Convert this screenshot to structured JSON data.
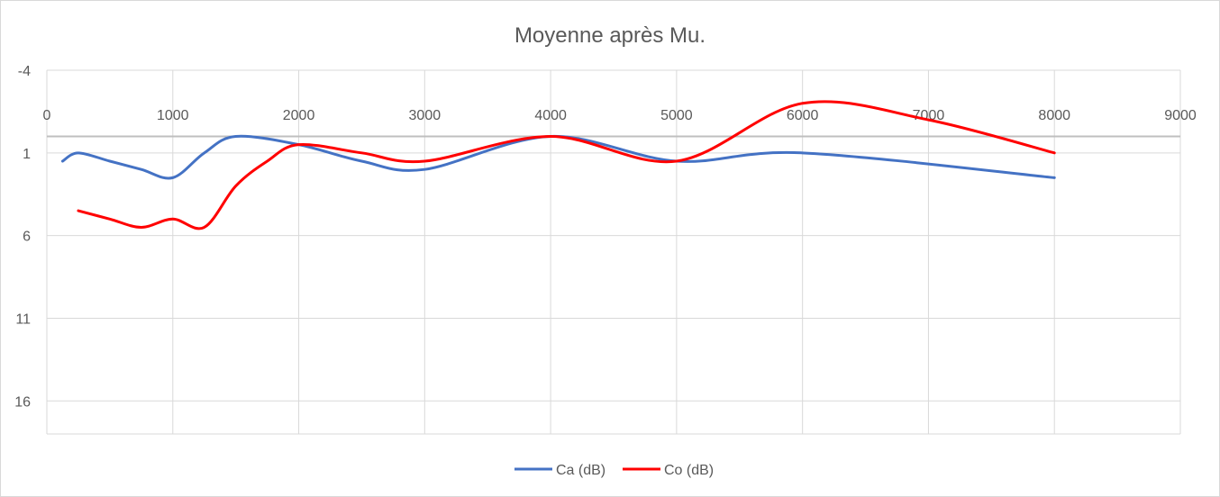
{
  "chart_data": {
    "type": "line",
    "title": "Moyenne après Mu.",
    "xlabel": "",
    "ylabel": "",
    "xlim": [
      0,
      9000
    ],
    "ylim": [
      -4,
      18
    ],
    "y_inverted": true,
    "x_axis_crosses_at": 0,
    "x_ticks": [
      "0",
      "1000",
      "2000",
      "3000",
      "4000",
      "5000",
      "6000",
      "7000",
      "8000",
      "9000"
    ],
    "y_ticks": [
      "-4",
      "1",
      "6",
      "11",
      "16"
    ],
    "grid": true,
    "legend_position": "bottom",
    "series": [
      {
        "name": "Ca (dB)",
        "color": "#4472C4",
        "x": [
          125,
          250,
          500,
          750,
          1000,
          1250,
          1500,
          2000,
          2500,
          3000,
          4000,
          5000,
          6000,
          8000
        ],
        "y": [
          1.5,
          1.0,
          1.5,
          2.0,
          2.5,
          1.0,
          0.0,
          0.5,
          1.5,
          2.0,
          0.0,
          1.5,
          1.0,
          2.5
        ]
      },
      {
        "name": "Co (dB)",
        "color": "#FF0000",
        "x": [
          250,
          500,
          750,
          1000,
          1250,
          1500,
          1750,
          2000,
          2500,
          3000,
          4000,
          5000,
          6000,
          7000,
          8000
        ],
        "y": [
          4.5,
          5.0,
          5.5,
          5.0,
          5.5,
          3.0,
          1.5,
          0.5,
          1.0,
          1.5,
          0.0,
          1.5,
          -2.0,
          -1.0,
          1.0
        ]
      }
    ]
  }
}
